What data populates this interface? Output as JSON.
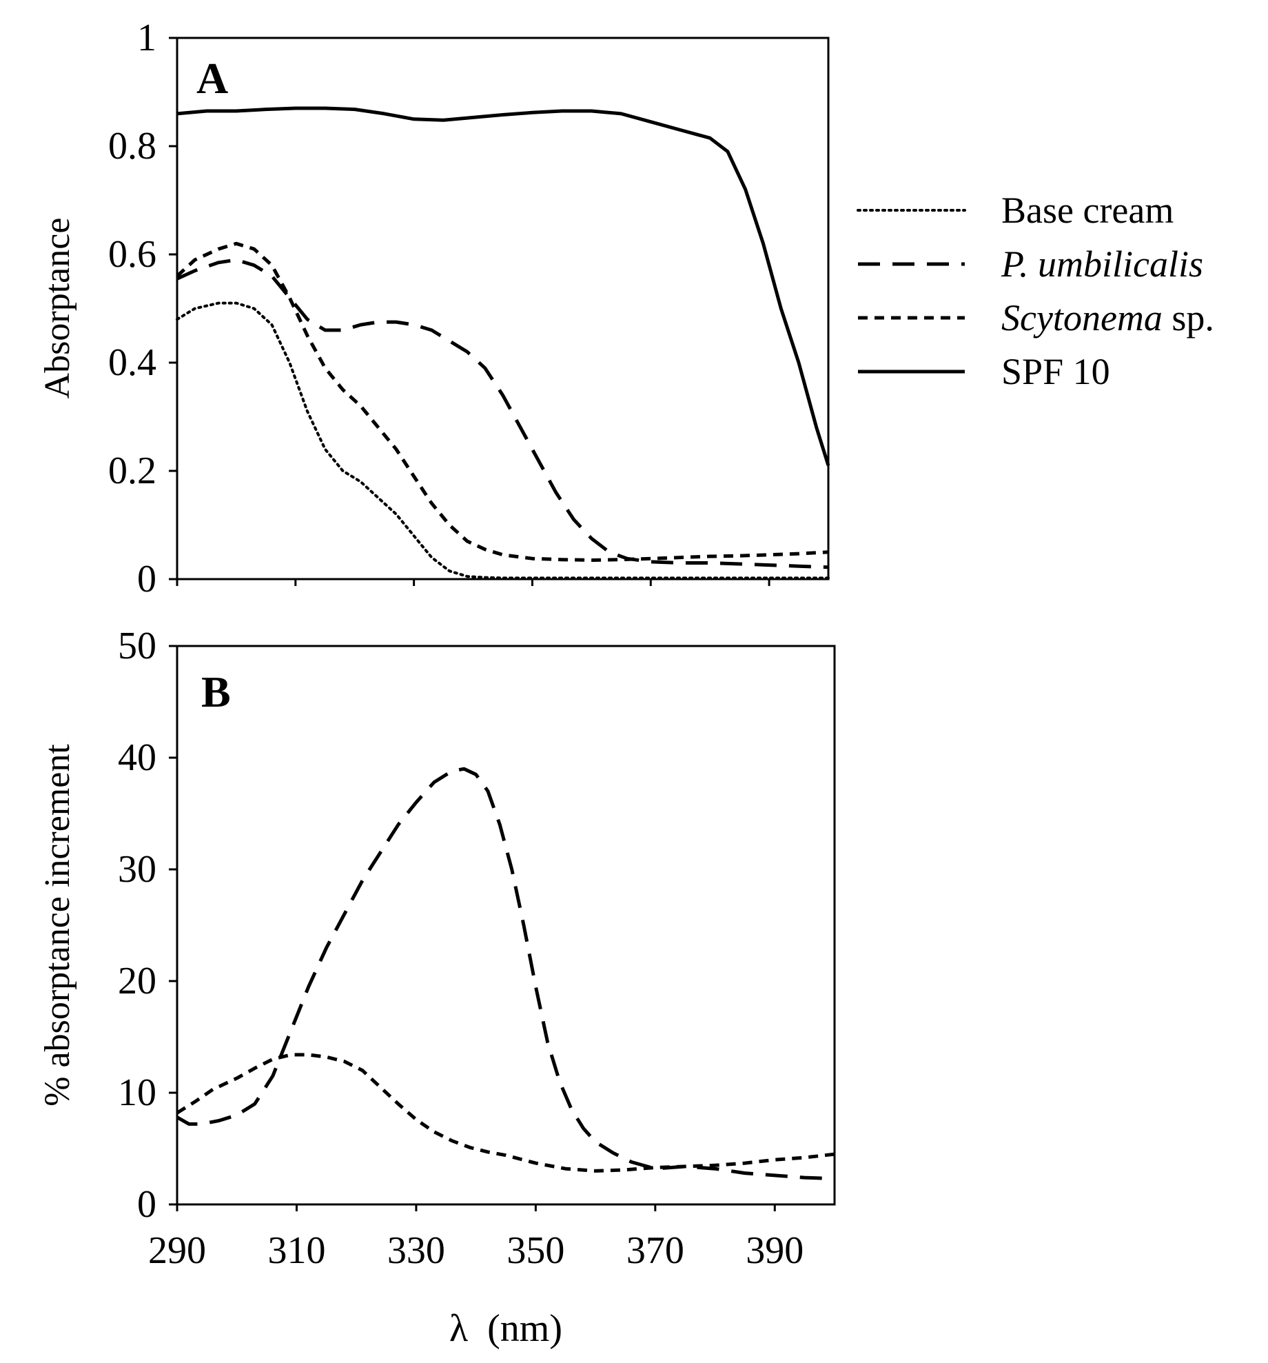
{
  "chart_data": [
    {
      "panel": "A",
      "type": "line",
      "panel_label": "A",
      "xlabel": "",
      "ylabel": "Absorptance",
      "xlim": [
        290,
        400
      ],
      "ylim": [
        0,
        1
      ],
      "yticks": [
        0,
        0.2,
        0.4,
        0.6,
        0.8,
        1
      ],
      "ytick_labels": [
        "0",
        "0.2",
        "0.4",
        "0.6",
        "0.8",
        "1"
      ],
      "xticks": [
        290,
        310,
        330,
        350,
        370,
        390
      ],
      "legend_position": "right",
      "series": [
        {
          "name": "Base cream",
          "style": "dotted",
          "x": [
            290,
            293,
            297,
            300,
            303,
            306,
            309,
            312,
            315,
            318,
            321,
            324,
            327,
            330,
            333,
            336,
            339,
            342,
            345,
            350,
            360,
            370,
            380,
            390,
            400
          ],
          "y": [
            0.48,
            0.5,
            0.51,
            0.51,
            0.5,
            0.47,
            0.4,
            0.31,
            0.24,
            0.2,
            0.18,
            0.15,
            0.12,
            0.08,
            0.04,
            0.015,
            0.005,
            0.003,
            0.002,
            0.002,
            0.002,
            0.002,
            0.002,
            0.002,
            0.002
          ]
        },
        {
          "name": "P. umbilicalis",
          "name_prefix": "",
          "name_italic": "P. umbilicalis",
          "name_suffix": "",
          "style": "long-dash",
          "x": [
            290,
            293,
            297,
            300,
            303,
            306,
            309,
            312,
            315,
            318,
            321,
            324,
            327,
            330,
            333,
            336,
            339,
            342,
            345,
            348,
            351,
            354,
            357,
            360,
            363,
            366,
            370,
            375,
            380,
            385,
            390,
            395,
            400
          ],
          "y": [
            0.555,
            0.57,
            0.585,
            0.59,
            0.58,
            0.56,
            0.52,
            0.48,
            0.46,
            0.46,
            0.47,
            0.475,
            0.475,
            0.47,
            0.46,
            0.44,
            0.42,
            0.39,
            0.34,
            0.28,
            0.22,
            0.16,
            0.11,
            0.075,
            0.05,
            0.038,
            0.032,
            0.03,
            0.03,
            0.028,
            0.026,
            0.024,
            0.022
          ]
        },
        {
          "name": "Scytonema sp.",
          "name_prefix": "",
          "name_italic": "Scytonema",
          "name_suffix": " sp.",
          "style": "short-dash",
          "x": [
            290,
            293,
            297,
            300,
            303,
            306,
            309,
            312,
            315,
            318,
            321,
            324,
            327,
            330,
            333,
            336,
            339,
            342,
            345,
            350,
            355,
            360,
            365,
            370,
            375,
            380,
            385,
            390,
            395,
            400
          ],
          "y": [
            0.56,
            0.59,
            0.61,
            0.62,
            0.61,
            0.58,
            0.52,
            0.45,
            0.39,
            0.35,
            0.32,
            0.28,
            0.24,
            0.19,
            0.14,
            0.1,
            0.07,
            0.055,
            0.045,
            0.038,
            0.036,
            0.035,
            0.036,
            0.038,
            0.04,
            0.042,
            0.043,
            0.045,
            0.047,
            0.05
          ]
        },
        {
          "name": "SPF 10",
          "style": "solid",
          "x": [
            290,
            295,
            300,
            305,
            310,
            315,
            320,
            325,
            330,
            335,
            340,
            345,
            350,
            355,
            360,
            365,
            370,
            375,
            380,
            383,
            386,
            389,
            392,
            395,
            398,
            400
          ],
          "y": [
            0.86,
            0.865,
            0.865,
            0.868,
            0.87,
            0.87,
            0.868,
            0.86,
            0.85,
            0.848,
            0.853,
            0.858,
            0.862,
            0.865,
            0.865,
            0.86,
            0.845,
            0.83,
            0.815,
            0.79,
            0.72,
            0.62,
            0.5,
            0.4,
            0.28,
            0.21
          ]
        }
      ]
    },
    {
      "panel": "B",
      "type": "line",
      "panel_label": "B",
      "xlabel": "λ  (nm)",
      "ylabel": "% absorptance increment",
      "xlim": [
        290,
        400
      ],
      "ylim": [
        0,
        50
      ],
      "yticks": [
        0,
        10,
        20,
        30,
        40,
        50
      ],
      "ytick_labels": [
        "0",
        "10",
        "20",
        "30",
        "40",
        "50"
      ],
      "xticks": [
        290,
        310,
        330,
        350,
        370,
        390
      ],
      "xtick_labels": [
        "290",
        "310",
        "330",
        "350",
        "370",
        "390"
      ],
      "series": [
        {
          "name": "P. umbilicalis",
          "style": "long-dash",
          "x": [
            290,
            292,
            294,
            297,
            300,
            303,
            306,
            309,
            312,
            315,
            318,
            321,
            324,
            327,
            330,
            333,
            336,
            338,
            340,
            342,
            344,
            346,
            348,
            350,
            352,
            354,
            356,
            358,
            360,
            363,
            366,
            370,
            375,
            380,
            385,
            390,
            395,
            400
          ],
          "y": [
            7.8,
            7.2,
            7.2,
            7.5,
            8.0,
            9.0,
            11.5,
            15.5,
            19.5,
            23.0,
            26.0,
            29.0,
            31.5,
            34.0,
            36.0,
            37.8,
            38.8,
            39.0,
            38.5,
            37.0,
            34.0,
            30.0,
            25.0,
            19.5,
            14.5,
            11.0,
            8.5,
            6.8,
            5.6,
            4.6,
            3.8,
            3.2,
            3.4,
            3.2,
            2.8,
            2.6,
            2.4,
            2.3
          ]
        },
        {
          "name": "Scytonema sp.",
          "style": "short-dash",
          "x": [
            290,
            293,
            296,
            300,
            303,
            306,
            309,
            312,
            315,
            318,
            321,
            324,
            327,
            330,
            333,
            336,
            339,
            342,
            345,
            350,
            355,
            360,
            365,
            370,
            375,
            380,
            385,
            390,
            395,
            400
          ],
          "y": [
            8.2,
            9.2,
            10.3,
            11.3,
            12.2,
            13.0,
            13.4,
            13.4,
            13.2,
            12.8,
            12.0,
            10.5,
            9.0,
            7.6,
            6.5,
            5.7,
            5.1,
            4.7,
            4.4,
            3.7,
            3.2,
            3.0,
            3.1,
            3.3,
            3.4,
            3.5,
            3.7,
            4.0,
            4.2,
            4.5
          ]
        }
      ]
    }
  ],
  "legend": {
    "items": [
      {
        "name": "Base cream",
        "style": "dotted",
        "text_plain": "Base cream",
        "text_italic": "",
        "text_suffix": ""
      },
      {
        "name": "P. umbilicalis",
        "style": "long-dash",
        "text_plain": "",
        "text_italic": "P. umbilicalis",
        "text_suffix": ""
      },
      {
        "name": "Scytonema sp.",
        "style": "short-dash",
        "text_plain": "",
        "text_italic": "Scytonema",
        "text_suffix": " sp."
      },
      {
        "name": "SPF 10",
        "style": "solid",
        "text_plain": "SPF 10",
        "text_italic": "",
        "text_suffix": ""
      }
    ]
  }
}
